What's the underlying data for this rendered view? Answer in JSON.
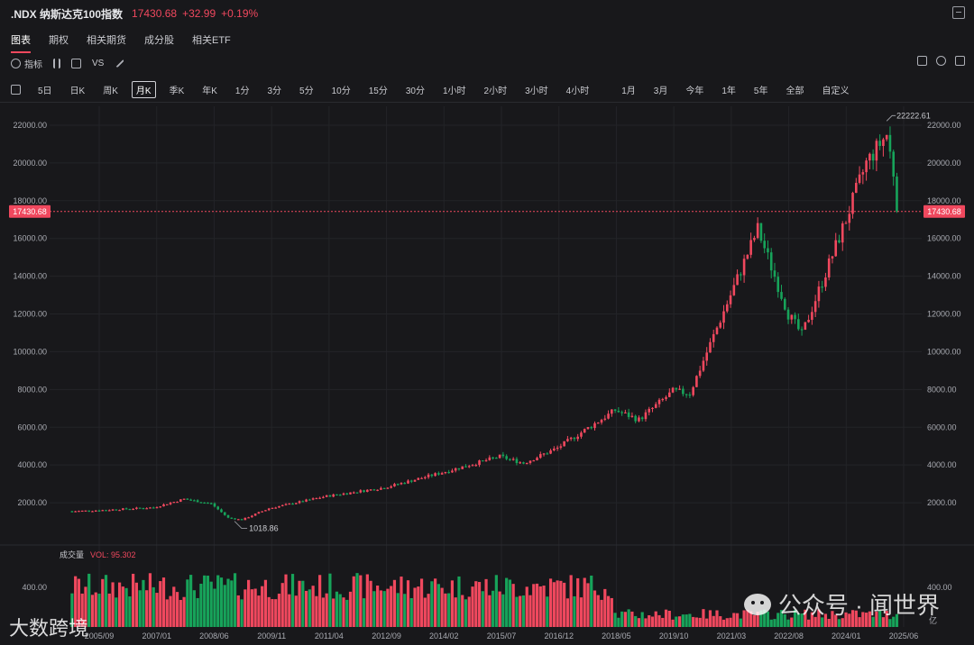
{
  "header": {
    "symbol": ".NDX 纳斯达克100指数",
    "price": "17430.68",
    "change": "+32.99",
    "change_pct": "+0.19%",
    "up_color": "#f0485e",
    "down_color": "#17a35a"
  },
  "tabs": [
    "图表",
    "期权",
    "相关期货",
    "成分股",
    "相关ETF"
  ],
  "toolbar": {
    "indicator_label": "指标",
    "vs_label": "VS"
  },
  "periods": [
    "5日",
    "日K",
    "周K",
    "月K",
    "季K",
    "年K",
    "1分",
    "3分",
    "5分",
    "10分",
    "15分",
    "30分",
    "1小时",
    "2小时",
    "3小时",
    "4小时"
  ],
  "ranges": [
    "1月",
    "3月",
    "今年",
    "1年",
    "5年",
    "全部",
    "自定义"
  ],
  "active_period": "月K",
  "chart_data": {
    "type": "candlestick",
    "y_ticks": [
      "22000.00",
      "20000.00",
      "18000.00",
      "16000.00",
      "14000.00",
      "12000.00",
      "10000.00",
      "8000.00",
      "6000.00",
      "4000.00",
      "2000.00"
    ],
    "ylim": [
      0,
      23000
    ],
    "x_ticks": [
      "2005/09",
      "2007/01",
      "2008/06",
      "2009/11",
      "2011/04",
      "2012/09",
      "2014/02",
      "2015/07",
      "2016/12",
      "2018/05",
      "2019/10",
      "2021/03",
      "2022/08",
      "2024/01",
      "2025/06"
    ],
    "last_price": "17430.68",
    "high_label": "22222.61",
    "low_label": "1018.86",
    "close_path": [
      [
        "2005/01",
        1550
      ],
      [
        "2005/09",
        1600
      ],
      [
        "2007/01",
        1750
      ],
      [
        "2007/10",
        2200
      ],
      [
        "2008/06",
        1950
      ],
      [
        "2008/11",
        1200
      ],
      [
        "2009/03",
        1100
      ],
      [
        "2009/11",
        1700
      ],
      [
        "2011/04",
        2350
      ],
      [
        "2012/09",
        2800
      ],
      [
        "2014/02",
        3600
      ],
      [
        "2015/07",
        4450
      ],
      [
        "2016/02",
        4100
      ],
      [
        "2016/12",
        4900
      ],
      [
        "2018/05",
        6900
      ],
      [
        "2018/12",
        6400
      ],
      [
        "2019/10",
        7900
      ],
      [
        "2020/03",
        7800
      ],
      [
        "2021/03",
        13000
      ],
      [
        "2021/11",
        16500
      ],
      [
        "2022/08",
        12000
      ],
      [
        "2022/12",
        10900
      ],
      [
        "2024/01",
        17000
      ],
      [
        "2024/07",
        20000
      ],
      [
        "2025/01",
        21500
      ],
      [
        "2025/03",
        19500
      ],
      [
        "2025/04",
        17430
      ]
    ]
  },
  "volume": {
    "label": "成交量",
    "vol_label": "VOL: 95.302",
    "tick": "400.00",
    "unit": "亿"
  },
  "watermarks": [
    "公众号 · 闻世界",
    "大数跨境"
  ]
}
